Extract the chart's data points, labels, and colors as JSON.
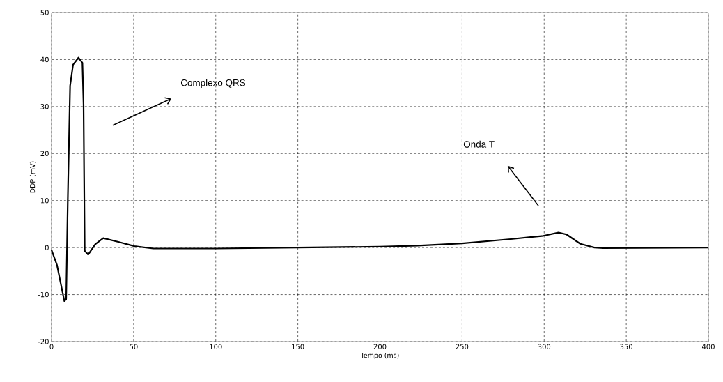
{
  "chart_data": {
    "type": "line",
    "xlabel": "Tempo (ms)",
    "ylabel": "DDP (mV)",
    "x": [
      0,
      3.3,
      7.8,
      8.9,
      9.9,
      11.3,
      13.1,
      16.4,
      18.8,
      19.5,
      20.2,
      22.3,
      26.6,
      31.5,
      40.7,
      50.5,
      62,
      100,
      150,
      200,
      223,
      250,
      279.7,
      299.5,
      308.7,
      313.6,
      322,
      330.6,
      336,
      400
    ],
    "series": [
      {
        "color": "#000000",
        "values": [
          -0.5,
          -3.7,
          -11.4,
          -11,
          10.1,
          34.4,
          38.9,
          40.4,
          39.3,
          30.4,
          -0.7,
          -1.5,
          0.7,
          2.0,
          1.2,
          0.3,
          -0.2,
          -0.2,
          0,
          0.2,
          0.4,
          0.9,
          1.8,
          2.5,
          3.2,
          2.8,
          0.8,
          0,
          -0.1,
          0
        ]
      }
    ],
    "xlim": [
      0,
      400
    ],
    "ylim": [
      -20,
      50
    ],
    "xticks": [
      0,
      50,
      100,
      150,
      200,
      250,
      300,
      350,
      400
    ],
    "yticks": [
      -20,
      -10,
      0,
      10,
      20,
      30,
      40,
      50
    ],
    "grid": true,
    "marker": "none",
    "line_style": "solid",
    "annotations": [
      "Complexo QRS",
      "Onda T"
    ]
  }
}
